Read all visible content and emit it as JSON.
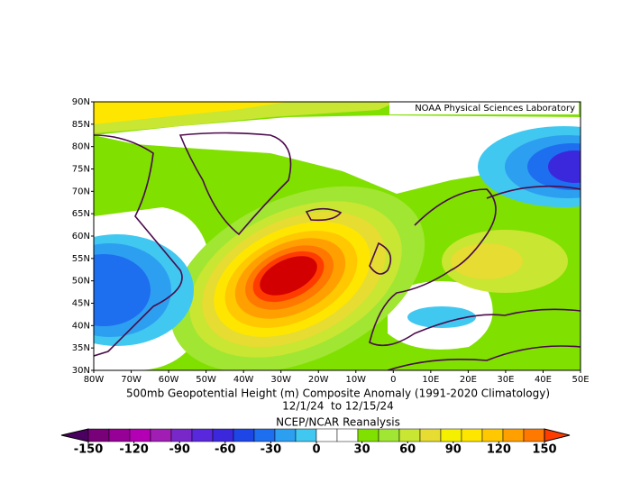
{
  "map": {
    "credit": "NOAA Physical Sciences Laboratory",
    "lat_labels": [
      "90N",
      "85N",
      "80N",
      "75N",
      "70N",
      "65N",
      "60N",
      "55N",
      "50N",
      "45N",
      "40N",
      "35N",
      "30N"
    ],
    "lon_labels": [
      "80W",
      "70W",
      "60W",
      "50W",
      "40W",
      "30W",
      "20W",
      "10W",
      "0",
      "10E",
      "20E",
      "30E",
      "40E",
      "50E"
    ],
    "title": "500mb Geopotential Height (m) Composite Anomaly (1991-2020 Climatology)",
    "dates": "12/1/24  to 12/15/24",
    "source": "NCEP/NCAR Reanalysis"
  },
  "colorbar": {
    "range": [
      -150,
      150
    ],
    "ticks": [
      -150,
      -120,
      -90,
      -60,
      -30,
      0,
      30,
      60,
      90,
      120,
      150
    ],
    "colors": [
      "#4a0060",
      "#780078",
      "#960096",
      "#b400b4",
      "#a01eb4",
      "#7828c8",
      "#5a28dc",
      "#3c28dc",
      "#1e46e6",
      "#1e6ef0",
      "#2d9ff0",
      "#40c8f0",
      "#ffffff",
      "#ffffff",
      "#80e000",
      "#a0e632",
      "#c8e632",
      "#e6dc32",
      "#f5f000",
      "#ffe600",
      "#ffc800",
      "#ffa000",
      "#ff7800",
      "#ff3c00"
    ]
  }
}
